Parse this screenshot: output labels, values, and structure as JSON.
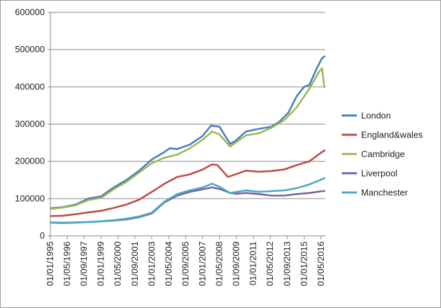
{
  "chart_data": {
    "type": "line",
    "title": "",
    "xlabel": "",
    "ylabel": "",
    "ylim": [
      0,
      600000
    ],
    "y_ticks": [
      0,
      100000,
      200000,
      300000,
      400000,
      500000,
      600000
    ],
    "y_tick_labels": [
      "0",
      "100000",
      "200000",
      "300000",
      "400000",
      "500000",
      "600000"
    ],
    "x_tick_labels": [
      "01/01/1995",
      "01/05/1996",
      "01/09/1997",
      "01/01/1999",
      "01/05/2000",
      "01/09/2001",
      "01/01/2003",
      "01/05/2004",
      "01/09/2005",
      "01/01/2007",
      "01/05/2008",
      "01/09/2009",
      "01/01/2011",
      "01/05/2012",
      "01/09/2013",
      "01/01/2015",
      "01/05/2016"
    ],
    "x_range": [
      "1995-01",
      "2016-09"
    ],
    "grid": "horizontal",
    "legend_position": "right",
    "series": [
      {
        "name": "London",
        "color": "#4A7EBB",
        "points": [
          [
            "1995-01",
            74000
          ],
          [
            "1996-01",
            77000
          ],
          [
            "1997-01",
            84000
          ],
          [
            "1998-01",
            100000
          ],
          [
            "1999-01",
            106000
          ],
          [
            "2000-01",
            130000
          ],
          [
            "2001-01",
            150000
          ],
          [
            "2002-01",
            175000
          ],
          [
            "2003-01",
            205000
          ],
          [
            "2004-01",
            225000
          ],
          [
            "2004-06",
            235000
          ],
          [
            "2005-01",
            233000
          ],
          [
            "2006-01",
            245000
          ],
          [
            "2007-01",
            268000
          ],
          [
            "2007-09",
            296000
          ],
          [
            "2008-05",
            293000
          ],
          [
            "2009-03",
            247000
          ],
          [
            "2009-08",
            255000
          ],
          [
            "2010-06",
            280000
          ],
          [
            "2011-06",
            287000
          ],
          [
            "2012-06",
            293000
          ],
          [
            "2013-01",
            305000
          ],
          [
            "2013-10",
            330000
          ],
          [
            "2014-06",
            375000
          ],
          [
            "2015-01",
            400000
          ],
          [
            "2015-06",
            405000
          ],
          [
            "2016-01",
            450000
          ],
          [
            "2016-06",
            477000
          ],
          [
            "2016-09",
            483000
          ]
        ]
      },
      {
        "name": "England&wales",
        "color": "#BE4B48",
        "points": [
          [
            "1995-01",
            53000
          ],
          [
            "1996-01",
            54000
          ],
          [
            "1997-01",
            58000
          ],
          [
            "1998-01",
            63000
          ],
          [
            "1999-01",
            67000
          ],
          [
            "2000-01",
            75000
          ],
          [
            "2001-01",
            84000
          ],
          [
            "2002-01",
            97000
          ],
          [
            "2003-01",
            118000
          ],
          [
            "2004-01",
            140000
          ],
          [
            "2005-01",
            158000
          ],
          [
            "2006-01",
            165000
          ],
          [
            "2007-01",
            178000
          ],
          [
            "2007-10",
            192000
          ],
          [
            "2008-03",
            190000
          ],
          [
            "2009-01",
            158000
          ],
          [
            "2009-06",
            163000
          ],
          [
            "2010-06",
            175000
          ],
          [
            "2011-06",
            172000
          ],
          [
            "2012-06",
            174000
          ],
          [
            "2013-06",
            178000
          ],
          [
            "2014-06",
            190000
          ],
          [
            "2015-06",
            200000
          ],
          [
            "2016-06",
            225000
          ],
          [
            "2016-09",
            230000
          ]
        ]
      },
      {
        "name": "Cambridge",
        "color": "#98B954",
        "points": [
          [
            "1995-01",
            72000
          ],
          [
            "1996-01",
            76000
          ],
          [
            "1997-01",
            82000
          ],
          [
            "1998-01",
            96000
          ],
          [
            "1999-01",
            102000
          ],
          [
            "2000-01",
            125000
          ],
          [
            "2001-01",
            145000
          ],
          [
            "2002-01",
            170000
          ],
          [
            "2003-01",
            195000
          ],
          [
            "2004-01",
            210000
          ],
          [
            "2005-01",
            218000
          ],
          [
            "2006-01",
            235000
          ],
          [
            "2007-01",
            258000
          ],
          [
            "2007-10",
            280000
          ],
          [
            "2008-05",
            272000
          ],
          [
            "2009-03",
            240000
          ],
          [
            "2009-08",
            250000
          ],
          [
            "2010-06",
            270000
          ],
          [
            "2011-06",
            275000
          ],
          [
            "2012-06",
            290000
          ],
          [
            "2013-06",
            310000
          ],
          [
            "2014-06",
            345000
          ],
          [
            "2015-06",
            395000
          ],
          [
            "2016-03",
            440000
          ],
          [
            "2016-06",
            450000
          ],
          [
            "2016-08",
            400000
          ],
          [
            "2016-09",
            398000
          ]
        ]
      },
      {
        "name": "Liverpool",
        "color": "#7D5FA0",
        "points": [
          [
            "1995-01",
            36000
          ],
          [
            "1996-01",
            35000
          ],
          [
            "1997-01",
            36000
          ],
          [
            "1998-01",
            37000
          ],
          [
            "1999-01",
            39000
          ],
          [
            "2000-01",
            41000
          ],
          [
            "2001-01",
            44000
          ],
          [
            "2002-01",
            50000
          ],
          [
            "2003-01",
            60000
          ],
          [
            "2004-01",
            90000
          ],
          [
            "2005-01",
            108000
          ],
          [
            "2006-01",
            118000
          ],
          [
            "2007-01",
            125000
          ],
          [
            "2007-10",
            130000
          ],
          [
            "2008-06",
            125000
          ],
          [
            "2009-03",
            115000
          ],
          [
            "2009-09",
            113000
          ],
          [
            "2010-06",
            115000
          ],
          [
            "2011-06",
            112000
          ],
          [
            "2012-06",
            108000
          ],
          [
            "2013-06",
            108000
          ],
          [
            "2014-06",
            112000
          ],
          [
            "2015-06",
            115000
          ],
          [
            "2016-06",
            120000
          ],
          [
            "2016-09",
            120000
          ]
        ]
      },
      {
        "name": "Manchester",
        "color": "#46AAC5",
        "points": [
          [
            "1995-01",
            35000
          ],
          [
            "1996-01",
            34000
          ],
          [
            "1997-01",
            35000
          ],
          [
            "1998-01",
            37000
          ],
          [
            "1999-01",
            39000
          ],
          [
            "2000-01",
            42000
          ],
          [
            "2001-01",
            46000
          ],
          [
            "2002-01",
            52000
          ],
          [
            "2003-01",
            62000
          ],
          [
            "2004-01",
            92000
          ],
          [
            "2005-01",
            112000
          ],
          [
            "2006-01",
            122000
          ],
          [
            "2007-01",
            130000
          ],
          [
            "2007-10",
            140000
          ],
          [
            "2008-06",
            130000
          ],
          [
            "2009-03",
            115000
          ],
          [
            "2009-09",
            118000
          ],
          [
            "2010-06",
            122000
          ],
          [
            "2011-06",
            118000
          ],
          [
            "2012-06",
            120000
          ],
          [
            "2013-06",
            122000
          ],
          [
            "2014-06",
            128000
          ],
          [
            "2015-06",
            138000
          ],
          [
            "2016-06",
            152000
          ],
          [
            "2016-09",
            156000
          ]
        ]
      }
    ]
  }
}
